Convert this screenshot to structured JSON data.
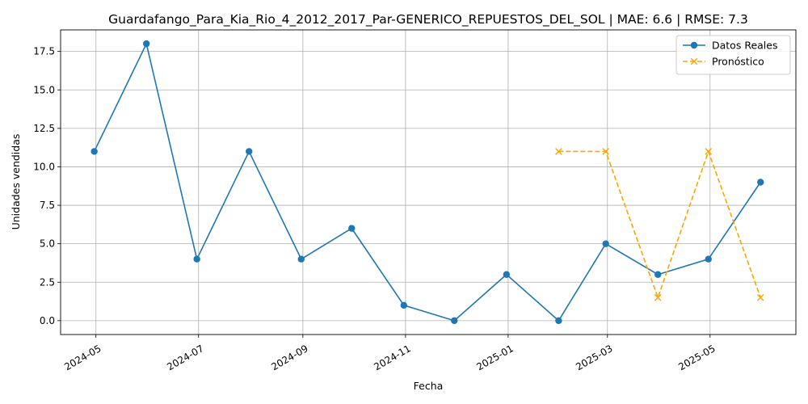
{
  "chart_data": {
    "type": "line",
    "title": "Guardafango_Para_Kia_Rio_4_2012_2017_Par-GENERICO_REPUESTOS_DEL_SOL | MAE: 6.6 | RMSE: 7.3",
    "xlabel": "Fecha",
    "ylabel": "Unidades vendidas",
    "x_ticks": [
      "2024-05",
      "2024-07",
      "2024-09",
      "2024-11",
      "2025-01",
      "2025-03",
      "2025-05"
    ],
    "y_ticks": [
      "0.0",
      "2.5",
      "5.0",
      "7.5",
      "10.0",
      "12.5",
      "15.0",
      "17.5"
    ],
    "ylim": [
      -0.9,
      18.9
    ],
    "xlim": [
      "2024-04-10",
      "2025-06-21"
    ],
    "grid": true,
    "legend_position": "top-right",
    "series": [
      {
        "name": "Datos Reales",
        "color": "#1f77b4",
        "marker": "circle",
        "line_style": "solid",
        "points": [
          {
            "x": "2024-04-30",
            "y": 11
          },
          {
            "x": "2024-05-31",
            "y": 18
          },
          {
            "x": "2024-06-30",
            "y": 4
          },
          {
            "x": "2024-07-31",
            "y": 11
          },
          {
            "x": "2024-08-31",
            "y": 4
          },
          {
            "x": "2024-09-30",
            "y": 6
          },
          {
            "x": "2024-10-31",
            "y": 1
          },
          {
            "x": "2024-11-30",
            "y": 0
          },
          {
            "x": "2024-12-31",
            "y": 3
          },
          {
            "x": "2025-01-31",
            "y": 0
          },
          {
            "x": "2025-02-28",
            "y": 5
          },
          {
            "x": "2025-03-31",
            "y": 3
          },
          {
            "x": "2025-04-30",
            "y": 4
          },
          {
            "x": "2025-05-31",
            "y": 9
          }
        ]
      },
      {
        "name": "Pronóstico",
        "color": "#ffa500",
        "marker": "x",
        "line_style": "dashed",
        "points": [
          {
            "x": "2025-01-31",
            "y": 11
          },
          {
            "x": "2025-02-28",
            "y": 11
          },
          {
            "x": "2025-03-31",
            "y": 1.5
          },
          {
            "x": "2025-04-30",
            "y": 11
          },
          {
            "x": "2025-05-31",
            "y": 1.5
          }
        ]
      }
    ]
  }
}
